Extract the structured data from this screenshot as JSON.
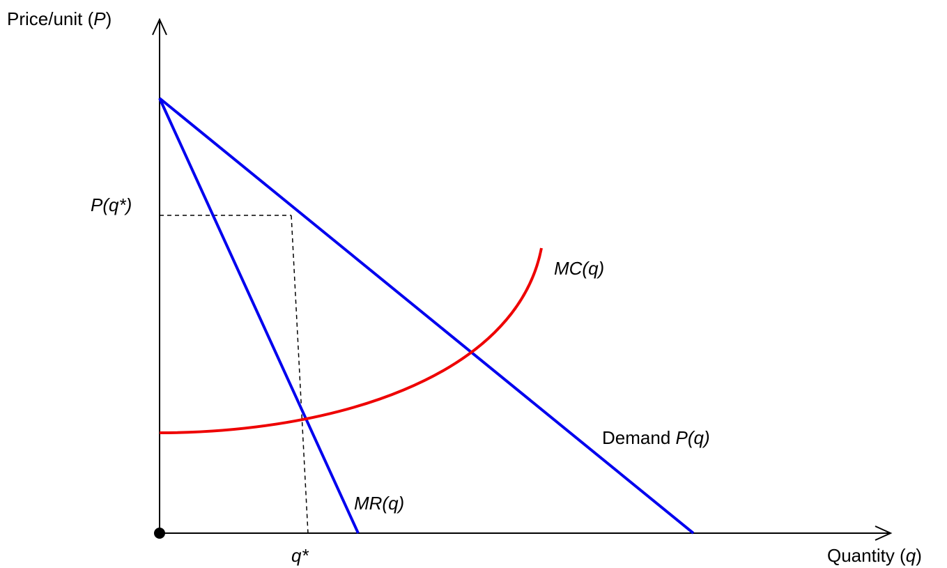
{
  "axes": {
    "y_label_prefix": "Price/unit (",
    "y_label_symbol": "P",
    "y_label_suffix": ")",
    "x_label_prefix": "Quantity (",
    "x_label_symbol": "q",
    "x_label_suffix": ")"
  },
  "curves": {
    "demand": {
      "label_prefix": "Demand ",
      "label_symbol": "P(q)",
      "color": "#0000ee"
    },
    "mr": {
      "label": "MR(q)",
      "color": "#0000ee"
    },
    "mc": {
      "label": "MC(q)",
      "color": "#ee0000"
    }
  },
  "markers": {
    "price_level": "P(q*)",
    "quantity_level": "q*"
  },
  "colors": {
    "axis": "#000000",
    "guide": "#000000"
  }
}
